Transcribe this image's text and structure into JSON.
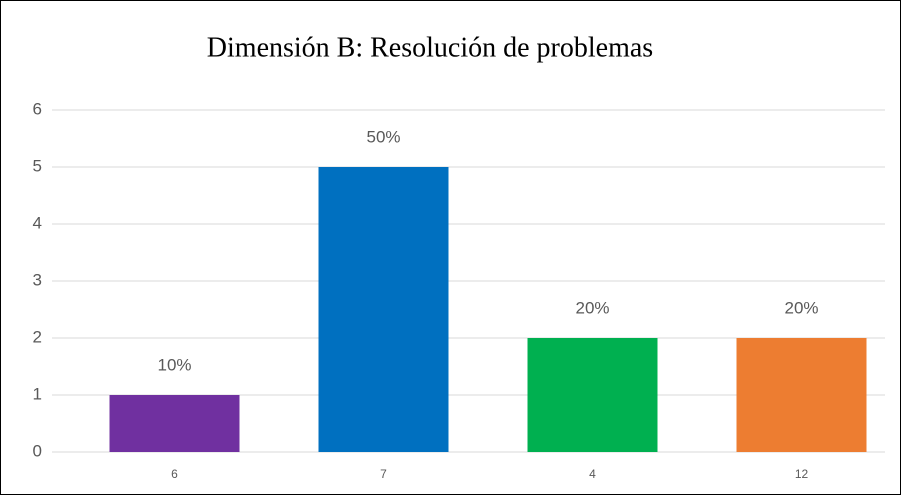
{
  "chart_data": {
    "type": "bar",
    "title": "Dimensión B: Resolución de problemas",
    "categories": [
      "6",
      "7",
      "4",
      "12"
    ],
    "values": [
      1,
      5,
      2,
      2
    ],
    "value_labels": [
      "10%",
      "50%",
      "20%",
      "20%"
    ],
    "colors": [
      "#7030a0",
      "#0070c0",
      "#00b050",
      "#ed7d31"
    ],
    "ylim": [
      0,
      6
    ],
    "yticks": [
      0,
      1,
      2,
      3,
      4,
      5,
      6
    ],
    "grid": true
  }
}
